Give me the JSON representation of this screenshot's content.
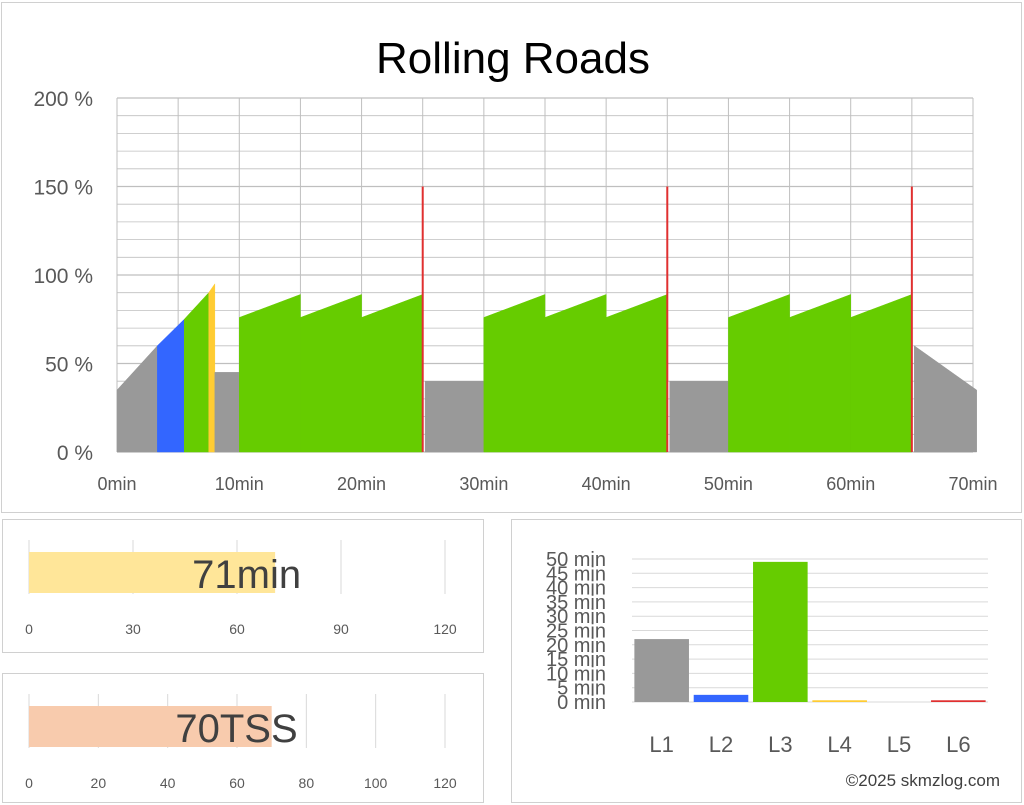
{
  "colors": {
    "L1": "#999999",
    "L2": "#3366ff",
    "L3": "#66cc00",
    "L4": "#ffcc33",
    "L5": "#ff9933",
    "L6": "#e03030",
    "duration_bar": "#ffe699",
    "tss_bar": "#f8cbad",
    "grid": "#bfbfbf"
  },
  "chart_data": [
    {
      "type": "area",
      "title": "Rolling Roads",
      "xlabel": "",
      "ylabel": "",
      "xlim": [
        0,
        70
      ],
      "ylim": [
        0,
        200
      ],
      "y_unit": "%",
      "grid": true,
      "xticks": [
        "0min",
        "10min",
        "20min",
        "30min",
        "40min",
        "50min",
        "60min",
        "70min"
      ],
      "yticks": [
        "0 %",
        "50 %",
        "100 %",
        "150 %",
        "200 %"
      ],
      "segments": [
        {
          "zone": "L1",
          "points": [
            [
              0,
              35
            ],
            [
              3.3,
              60
            ]
          ]
        },
        {
          "zone": "L2",
          "points": [
            [
              3.3,
              60
            ],
            [
              5.5,
              75
            ]
          ]
        },
        {
          "zone": "L3",
          "points": [
            [
              5.5,
              75
            ],
            [
              7.5,
              90
            ]
          ]
        },
        {
          "zone": "L4",
          "points": [
            [
              7.5,
              90
            ],
            [
              8.0,
              95
            ]
          ]
        },
        {
          "zone": "L1",
          "points": [
            [
              8.0,
              45
            ],
            [
              10,
              45
            ]
          ]
        },
        {
          "zone": "L3",
          "points": [
            [
              10,
              76
            ],
            [
              15,
              89
            ]
          ]
        },
        {
          "zone": "L3",
          "points": [
            [
              15,
              76
            ],
            [
              20,
              89
            ]
          ]
        },
        {
          "zone": "L3",
          "points": [
            [
              20,
              76
            ],
            [
              25,
              89
            ]
          ]
        },
        {
          "zone": "L6",
          "points": [
            [
              25,
              150
            ],
            [
              25.2,
              150
            ]
          ]
        },
        {
          "zone": "L1",
          "points": [
            [
              25.2,
              40
            ],
            [
              30,
              40
            ]
          ]
        },
        {
          "zone": "L3",
          "points": [
            [
              30,
              76
            ],
            [
              35,
              89
            ]
          ]
        },
        {
          "zone": "L3",
          "points": [
            [
              35,
              76
            ],
            [
              40,
              89
            ]
          ]
        },
        {
          "zone": "L3",
          "points": [
            [
              40,
              76
            ],
            [
              45,
              89
            ]
          ]
        },
        {
          "zone": "L6",
          "points": [
            [
              45,
              150
            ],
            [
              45.2,
              150
            ]
          ]
        },
        {
          "zone": "L1",
          "points": [
            [
              45.2,
              40
            ],
            [
              50,
              40
            ]
          ]
        },
        {
          "zone": "L3",
          "points": [
            [
              50,
              76
            ],
            [
              55,
              89
            ]
          ]
        },
        {
          "zone": "L3",
          "points": [
            [
              55,
              76
            ],
            [
              60,
              89
            ]
          ]
        },
        {
          "zone": "L3",
          "points": [
            [
              60,
              76
            ],
            [
              65,
              89
            ]
          ]
        },
        {
          "zone": "L6",
          "points": [
            [
              65,
              150
            ],
            [
              65.2,
              150
            ]
          ]
        },
        {
          "zone": "L1",
          "points": [
            [
              65.2,
              60
            ],
            [
              70.3,
              35
            ]
          ]
        }
      ]
    },
    {
      "type": "bar",
      "orientation": "horizontal",
      "value": 71,
      "label": "71min",
      "xlim": [
        0,
        120
      ],
      "xticks": [
        "0",
        "30",
        "60",
        "90",
        "120"
      ]
    },
    {
      "type": "bar",
      "orientation": "horizontal",
      "value": 70,
      "label": "70TSS",
      "xlim": [
        0,
        120
      ],
      "xticks": [
        "0",
        "20",
        "40",
        "60",
        "80",
        "100",
        "120"
      ]
    },
    {
      "type": "bar",
      "categories": [
        "L1",
        "L2",
        "L3",
        "L4",
        "L5",
        "L6"
      ],
      "values": [
        22,
        2.5,
        49,
        0.6,
        0,
        0.6
      ],
      "ylim": [
        0,
        50
      ],
      "yticks": [
        "0 min",
        "5 min",
        "10 min",
        "15 min",
        "20 min",
        "25 min",
        "30 min",
        "35 min",
        "40 min",
        "45 min",
        "50 min"
      ]
    }
  ],
  "footer": {
    "copyright": "©2025 skmzlog.com"
  }
}
